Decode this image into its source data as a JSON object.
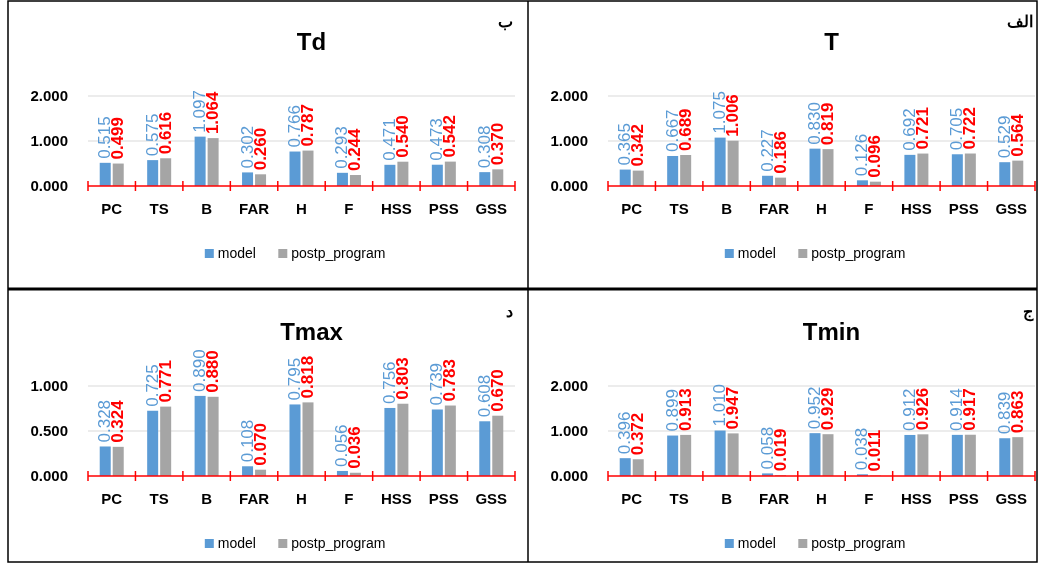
{
  "chart_data": [
    {
      "type": "bar",
      "title": "Td",
      "annotations": [
        "ب"
      ],
      "categories": [
        "PC",
        "TS",
        "B",
        "FAR",
        "H",
        "F",
        "HSS",
        "PSS",
        "GSS"
      ],
      "ylim": [
        0,
        2
      ],
      "yticks": [
        {
          "value": 0,
          "label": "0.000"
        },
        {
          "value": 1,
          "label": "1.000"
        },
        {
          "value": 2,
          "label": "2.000"
        }
      ],
      "grid": "y",
      "legend": "bottom",
      "series": [
        {
          "name": "model",
          "color": "#5b9bd5",
          "values": [
            0.515,
            0.575,
            1.097,
            0.302,
            0.766,
            0.293,
            0.471,
            0.473,
            0.308
          ],
          "value_labels": [
            "0.515",
            "0.575",
            "1.097",
            "0.302",
            "0.766",
            "0.293",
            "0.471",
            "0.473",
            "0.308"
          ]
        },
        {
          "name": "postp_program",
          "color": "#a5a5a5",
          "values": [
            0.499,
            0.616,
            1.064,
            0.26,
            0.787,
            0.244,
            0.54,
            0.542,
            0.37
          ],
          "value_labels": [
            "0.499",
            "0.616",
            "1.064",
            "0.260",
            "0.787",
            "0.244",
            "0.540",
            "0.542",
            "0.370"
          ]
        }
      ]
    },
    {
      "type": "bar",
      "title": "T",
      "annotations": [
        "الف"
      ],
      "categories": [
        "PC",
        "TS",
        "B",
        "FAR",
        "H",
        "F",
        "HSS",
        "PSS",
        "GSS"
      ],
      "ylim": [
        0,
        2
      ],
      "yticks": [
        {
          "value": 0,
          "label": "0.000"
        },
        {
          "value": 1,
          "label": "1.000"
        },
        {
          "value": 2,
          "label": "2.000"
        }
      ],
      "grid": "y",
      "legend": "bottom",
      "series": [
        {
          "name": "model",
          "color": "#5b9bd5",
          "values": [
            0.365,
            0.667,
            1.075,
            0.227,
            0.83,
            0.126,
            0.692,
            0.705,
            0.529
          ],
          "value_labels": [
            "0.365",
            "0.667",
            "1.075",
            "0.227",
            "0.830",
            "0.126",
            "0.692",
            "0.705",
            "0.529"
          ]
        },
        {
          "name": "postp_program",
          "color": "#a5a5a5",
          "values": [
            0.342,
            0.689,
            1.006,
            0.186,
            0.819,
            0.096,
            0.721,
            0.722,
            0.564
          ],
          "value_labels": [
            "0.342",
            "0.689",
            "1.006",
            "0.186",
            "0.819",
            "0.096",
            "0.721",
            "0.722",
            "0.564"
          ]
        }
      ]
    },
    {
      "type": "bar",
      "title": "Tmax",
      "annotations": [
        "د"
      ],
      "categories": [
        "PC",
        "TS",
        "B",
        "FAR",
        "H",
        "F",
        "HSS",
        "PSS",
        "GSS"
      ],
      "ylim": [
        0,
        1
      ],
      "yticks": [
        {
          "value": 0,
          "label": "0.000"
        },
        {
          "value": 0.5,
          "label": "0.500"
        },
        {
          "value": 1,
          "label": "1.000"
        }
      ],
      "grid": "y",
      "legend": "bottom",
      "series": [
        {
          "name": "model",
          "color": "#5b9bd5",
          "values": [
            0.328,
            0.725,
            0.89,
            0.108,
            0.795,
            0.056,
            0.756,
            0.739,
            0.608
          ],
          "value_labels": [
            "0.328",
            "0.725",
            "0.890",
            "0.108",
            "0.795",
            "0.056",
            "0.756",
            "0.739",
            "0.608"
          ]
        },
        {
          "name": "postp_program",
          "color": "#a5a5a5",
          "values": [
            0.324,
            0.771,
            0.88,
            0.07,
            0.818,
            0.036,
            0.803,
            0.783,
            0.67
          ],
          "value_labels": [
            "0.324",
            "0.771",
            "0.880",
            "0.070",
            "0.818",
            "0.036",
            "0.803",
            "0.783",
            "0.670"
          ]
        }
      ]
    },
    {
      "type": "bar",
      "title": "Tmin",
      "annotations": [
        "ج"
      ],
      "categories": [
        "PC",
        "TS",
        "B",
        "FAR",
        "H",
        "F",
        "HSS",
        "PSS",
        "GSS"
      ],
      "ylim": [
        0,
        2
      ],
      "yticks": [
        {
          "value": 0,
          "label": "0.000"
        },
        {
          "value": 1,
          "label": "1.000"
        },
        {
          "value": 2,
          "label": "2.000"
        }
      ],
      "grid": "y",
      "legend": "bottom",
      "series": [
        {
          "name": "model",
          "color": "#5b9bd5",
          "values": [
            0.396,
            0.899,
            1.01,
            0.058,
            0.952,
            0.038,
            0.912,
            0.914,
            0.839
          ],
          "value_labels": [
            "0.396",
            "0.899",
            "1.010",
            "0.058",
            "0.952",
            "0.038",
            "0.912",
            "0.914",
            "0.839"
          ]
        },
        {
          "name": "postp_program",
          "color": "#a5a5a5",
          "values": [
            0.372,
            0.913,
            0.947,
            0.019,
            0.929,
            0.011,
            0.926,
            0.917,
            0.863
          ],
          "value_labels": [
            "0.372",
            "0.913",
            "0.947",
            "0.019",
            "0.929",
            "0.011",
            "0.926",
            "0.917",
            "0.863"
          ]
        }
      ]
    }
  ]
}
